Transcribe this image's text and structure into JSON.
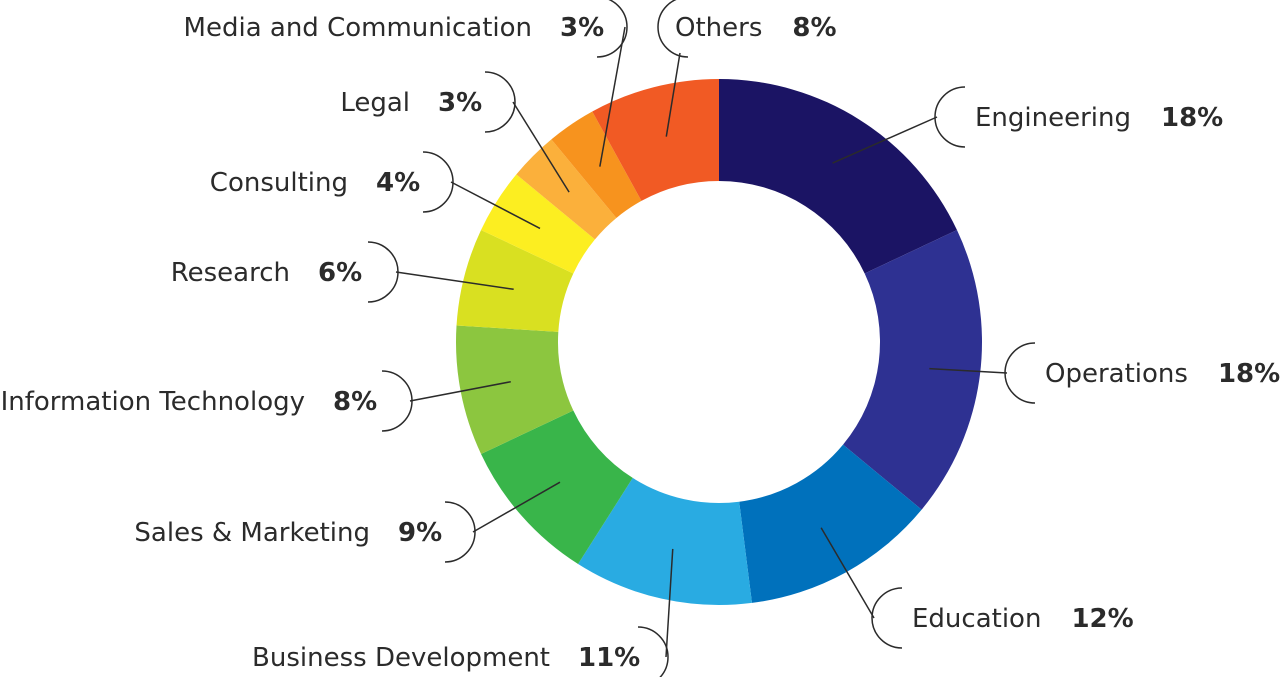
{
  "chart_data": {
    "type": "pie",
    "donut": true,
    "title": "",
    "slices": [
      {
        "label": "Engineering",
        "value": 18,
        "value_text": "18%",
        "color": "#1b1464"
      },
      {
        "label": "Operations",
        "value": 18,
        "value_text": "18%",
        "color": "#2e3192"
      },
      {
        "label": "Education",
        "value": 12,
        "value_text": "12%",
        "color": "#0071bc"
      },
      {
        "label": "Business Development",
        "value": 11,
        "value_text": "11%",
        "color": "#29abe2"
      },
      {
        "label": "Sales & Marketing",
        "value": 9,
        "value_text": "9%",
        "color": "#39b54a"
      },
      {
        "label": "Information Technology",
        "value": 8,
        "value_text": "8%",
        "color": "#8cc63f"
      },
      {
        "label": "Research",
        "value": 6,
        "value_text": "6%",
        "color": "#d9e021"
      },
      {
        "label": "Consulting",
        "value": 4,
        "value_text": "4%",
        "color": "#fcee21"
      },
      {
        "label": "Legal",
        "value": 3,
        "value_text": "3%",
        "color": "#fbb03b"
      },
      {
        "label": "Media and Communication",
        "value": 3,
        "value_text": "3%",
        "color": "#f7931e"
      },
      {
        "label": "Others",
        "value": 8,
        "value_text": "8%",
        "color": "#f15a24"
      }
    ]
  }
}
